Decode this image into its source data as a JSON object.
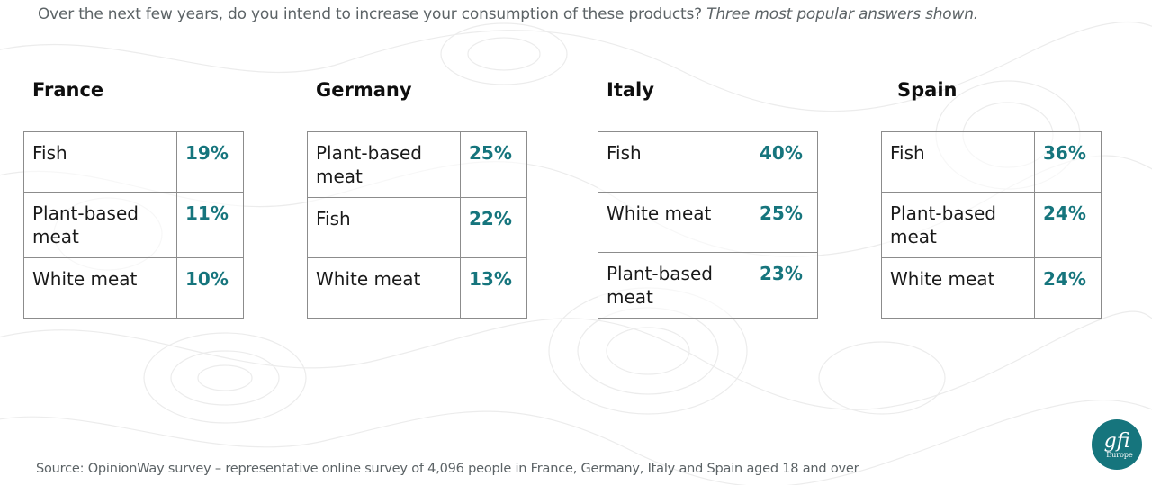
{
  "header": {
    "question": "Over the next few years, do you intend to increase your consumption of these products?",
    "note": "Three most popular answers shown."
  },
  "countries": [
    {
      "name": "France",
      "rows": [
        {
          "label": "Fish",
          "value": "19%"
        },
        {
          "label": "Plant-based meat",
          "value": "11%"
        },
        {
          "label": "White meat",
          "value": "10%"
        }
      ]
    },
    {
      "name": "Germany",
      "rows": [
        {
          "label": "Plant-based meat",
          "value": "25%"
        },
        {
          "label": "Fish",
          "value": "22%"
        },
        {
          "label": "White meat",
          "value": "13%"
        }
      ]
    },
    {
      "name": "Italy",
      "rows": [
        {
          "label": "Fish",
          "value": "40%"
        },
        {
          "label": "White meat",
          "value": "25%"
        },
        {
          "label": "Plant-based meat",
          "value": "23%"
        }
      ]
    },
    {
      "name": "Spain",
      "rows": [
        {
          "label": "Fish",
          "value": "36%"
        },
        {
          "label": "Plant-based meat",
          "value": "24%"
        },
        {
          "label": "White meat",
          "value": "24%"
        }
      ]
    }
  ],
  "footer": {
    "source": "Source: OpinionWay survey – representative online survey of 4,096 people in France, Germany, Italy and Spain aged 18 and over"
  },
  "logo": {
    "text": "gfi",
    "subtext": "Europe"
  },
  "colors": {
    "accent": "#16757d",
    "muted_text": "#5c6366",
    "border": "#8c8c8c"
  }
}
